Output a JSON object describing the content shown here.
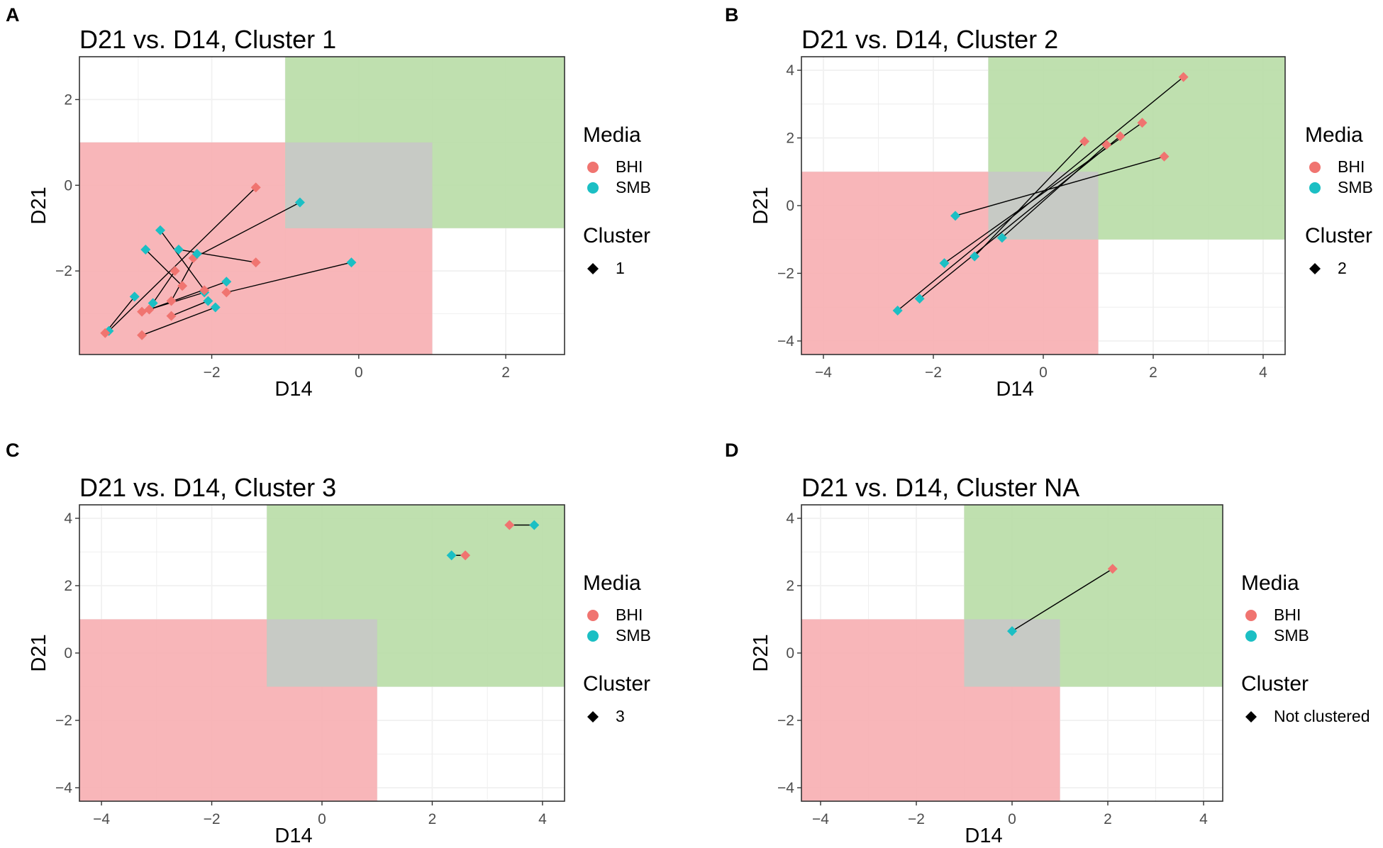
{
  "colors": {
    "BHI": "#F07470",
    "SMB": "#1BBFC4",
    "green_zone": "#B8DDA6",
    "red_zone": "#F7AEB1",
    "gray_zone": "#C8C8C8",
    "grid": "#EBEBEB",
    "axis_text": "#4D4D4D"
  },
  "legend": {
    "media_title": "Media",
    "media_items": [
      "BHI",
      "SMB"
    ],
    "cluster_title": "Cluster"
  },
  "chart_data": [
    {
      "panel_label": "A",
      "type": "scatter",
      "title": "D21 vs. D14, Cluster 1",
      "xlabel": "D14",
      "ylabel": "D21",
      "xlim": [
        -3.8,
        2.8
      ],
      "ylim": [
        -3.95,
        3.0
      ],
      "xticks": [
        -2,
        0,
        2
      ],
      "yticks": [
        -2,
        0,
        2
      ],
      "cluster_label": "1",
      "pairs": [
        {
          "bhi": [
            -1.4,
            -0.05
          ],
          "smb": [
            -3.4,
            -3.4
          ]
        },
        {
          "bhi": [
            -3.45,
            -3.45
          ],
          "smb": [
            -3.05,
            -2.6
          ]
        },
        {
          "bhi": [
            -2.25,
            -1.7
          ],
          "smb": [
            -0.8,
            -0.4
          ]
        },
        {
          "bhi": [
            -2.95,
            -2.95
          ],
          "smb": [
            -2.1,
            -2.5
          ]
        },
        {
          "bhi": [
            -2.55,
            -2.7
          ],
          "smb": [
            -2.2,
            -1.6
          ]
        },
        {
          "bhi": [
            -2.85,
            -2.9
          ],
          "smb": [
            -1.8,
            -2.25
          ]
        },
        {
          "bhi": [
            -2.55,
            -3.05
          ],
          "smb": [
            -2.05,
            -2.7
          ]
        },
        {
          "bhi": [
            -2.4,
            -2.35
          ],
          "smb": [
            -2.9,
            -1.5
          ]
        },
        {
          "bhi": [
            -1.4,
            -1.8
          ],
          "smb": [
            -2.45,
            -1.5
          ]
        },
        {
          "bhi": [
            -2.95,
            -3.5
          ],
          "smb": [
            -1.95,
            -2.85
          ]
        },
        {
          "bhi": [
            -1.8,
            -2.5
          ],
          "smb": [
            -0.1,
            -1.8
          ]
        },
        {
          "bhi": [
            -2.5,
            -2.0
          ],
          "smb": [
            -2.8,
            -2.75
          ]
        },
        {
          "bhi": [
            -2.1,
            -2.45
          ],
          "smb": [
            -2.7,
            -1.05
          ]
        }
      ]
    },
    {
      "panel_label": "B",
      "type": "scatter",
      "title": "D21 vs. D14, Cluster 2",
      "xlabel": "D14",
      "ylabel": "D21",
      "xlim": [
        -4.4,
        4.4
      ],
      "ylim": [
        -4.4,
        4.4
      ],
      "xticks": [
        -4,
        -2,
        0,
        2,
        4
      ],
      "yticks": [
        -4,
        -2,
        0,
        2,
        4
      ],
      "cluster_label": "2",
      "pairs": [
        {
          "bhi": [
            2.55,
            3.8
          ],
          "smb": [
            -2.65,
            -3.1
          ]
        },
        {
          "bhi": [
            1.8,
            2.45
          ],
          "smb": [
            -1.8,
            -1.7
          ]
        },
        {
          "bhi": [
            1.4,
            2.05
          ],
          "smb": [
            -2.25,
            -2.75
          ]
        },
        {
          "bhi": [
            1.15,
            1.8
          ],
          "smb": [
            -0.75,
            -0.95
          ]
        },
        {
          "bhi": [
            0.75,
            1.9
          ],
          "smb": [
            -1.25,
            -1.5
          ]
        },
        {
          "bhi": [
            2.2,
            1.45
          ],
          "smb": [
            -1.6,
            -0.3
          ]
        }
      ]
    },
    {
      "panel_label": "C",
      "type": "scatter",
      "title": "D21 vs. D14, Cluster 3",
      "xlabel": "D14",
      "ylabel": "D21",
      "xlim": [
        -4.4,
        4.4
      ],
      "ylim": [
        -4.4,
        4.4
      ],
      "xticks": [
        -4,
        -2,
        0,
        2,
        4
      ],
      "yticks": [
        -4,
        -2,
        0,
        2,
        4
      ],
      "cluster_label": "3",
      "pairs": [
        {
          "bhi": [
            3.4,
            3.8
          ],
          "smb": [
            3.85,
            3.8
          ]
        },
        {
          "bhi": [
            2.6,
            2.9
          ],
          "smb": [
            2.35,
            2.9
          ]
        }
      ]
    },
    {
      "panel_label": "D",
      "type": "scatter",
      "title": "D21 vs. D14, Cluster NA",
      "xlabel": "D14",
      "ylabel": "D21",
      "xlim": [
        -4.4,
        4.4
      ],
      "ylim": [
        -4.4,
        4.4
      ],
      "xticks": [
        -4,
        -2,
        0,
        2,
        4
      ],
      "yticks": [
        -4,
        -2,
        0,
        2,
        4
      ],
      "cluster_label": "Not clustered",
      "pairs": [
        {
          "bhi": [
            2.1,
            2.5
          ],
          "smb": [
            0.0,
            0.65
          ]
        }
      ]
    }
  ]
}
